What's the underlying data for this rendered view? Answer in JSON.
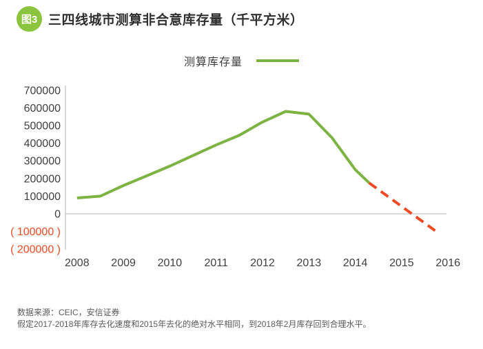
{
  "header": {
    "figure_badge": "图3",
    "title": "三四线城市测算非合意库存量（千平方米）"
  },
  "legend": {
    "label": "测算库存量"
  },
  "footer": {
    "source": "数据来源：CEIC，安信证券",
    "note": "假定2017-2018年库存去化速度和2015年去化的绝对水平相同，到2018年2月库存回到合理水平。"
  },
  "colors": {
    "line_green": "#7db342",
    "badge_green": "#8bc53f",
    "forecast_red": "#ec4b24",
    "axis_gray": "#b3b3b3",
    "tick_text": "#404040",
    "negative_tick_text": "#ec4b24"
  },
  "chart_data": {
    "type": "line",
    "title": "三四线城市测算非合意库存量（千平方米）",
    "figure_label": "图3",
    "xlabel": "",
    "ylabel": "",
    "grid": false,
    "legend_position": "top-center",
    "legend_entries": [
      "测算库存量"
    ],
    "xlim": [
      2007.75,
      2016.05
    ],
    "ylim": [
      -200000,
      700000
    ],
    "x_ticks": [
      2008,
      2009,
      2010,
      2011,
      2012,
      2013,
      2014,
      2015,
      2016
    ],
    "y_ticks": [
      {
        "value": 700000,
        "label": "700000"
      },
      {
        "value": 600000,
        "label": "600000"
      },
      {
        "value": 500000,
        "label": "500000"
      },
      {
        "value": 400000,
        "label": "400000"
      },
      {
        "value": 300000,
        "label": "300000"
      },
      {
        "value": 200000,
        "label": "200000"
      },
      {
        "value": 100000,
        "label": "100000"
      },
      {
        "value": 0,
        "label": "0"
      },
      {
        "value": -100000,
        "label": "( 100000 )",
        "negative": true
      },
      {
        "value": -200000,
        "label": "( 200000 )",
        "negative": true
      }
    ],
    "series": [
      {
        "name": "测算库存量",
        "style": "solid",
        "color": "#7db342",
        "points": [
          [
            2008.0,
            90000
          ],
          [
            2008.5,
            100000
          ],
          [
            2009.0,
            160000
          ],
          [
            2009.5,
            215000
          ],
          [
            2010.0,
            270000
          ],
          [
            2010.5,
            330000
          ],
          [
            2011.0,
            390000
          ],
          [
            2011.5,
            445000
          ],
          [
            2012.0,
            520000
          ],
          [
            2012.5,
            580000
          ],
          [
            2013.0,
            565000
          ],
          [
            2013.5,
            430000
          ],
          [
            2014.0,
            250000
          ],
          [
            2014.3,
            175000
          ]
        ]
      },
      {
        "name": "forecast-dashed",
        "style": "dashed",
        "color": "#ec4b24",
        "points": [
          [
            2014.3,
            175000
          ],
          [
            2015.8,
            -110000
          ]
        ]
      }
    ]
  }
}
